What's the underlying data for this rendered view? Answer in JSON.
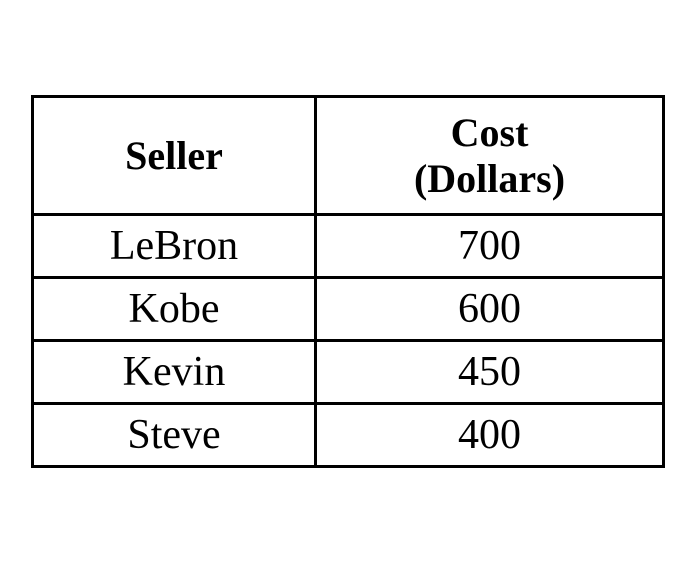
{
  "table": {
    "headers": {
      "seller": "Seller",
      "cost_line1": "Cost",
      "cost_line2": "(Dollars)"
    },
    "rows": [
      {
        "seller": "LeBron",
        "cost": "700"
      },
      {
        "seller": "Kobe",
        "cost": "600"
      },
      {
        "seller": "Kevin",
        "cost": "450"
      },
      {
        "seller": "Steve",
        "cost": "400"
      }
    ]
  }
}
